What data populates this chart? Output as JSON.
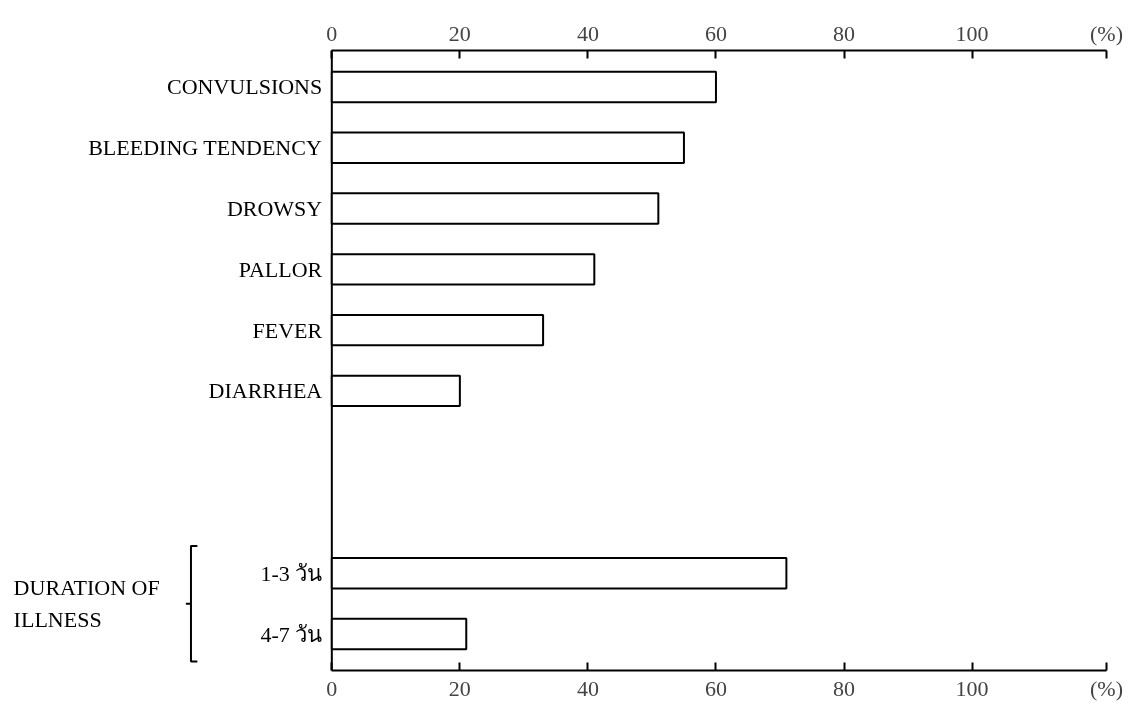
{
  "chart_data": {
    "type": "bar",
    "orientation": "horizontal",
    "categories": [
      "CONVULSIONS",
      "BLEEDING TENDENCY",
      "DROWSY",
      "PALLOR",
      "FEVER",
      "DIARRHEA",
      null,
      null,
      "1-3 วัน",
      "4-7 วัน"
    ],
    "series": [
      {
        "color": "#ffffff",
        "values": [
          60,
          55,
          51,
          41,
          33,
          20,
          null,
          null,
          71,
          21
        ]
      }
    ],
    "xlim": [
      0,
      121
    ],
    "xticks": [
      0,
      20,
      40,
      60,
      80,
      100
    ],
    "x2lim": [
      0,
      121
    ],
    "x2ticks": [
      0,
      20,
      40,
      60,
      80,
      100
    ],
    "xlabel": "(%)",
    "x2label": "(%)",
    "annotations": [
      "DURATION OF\nILLNESS"
    ]
  }
}
